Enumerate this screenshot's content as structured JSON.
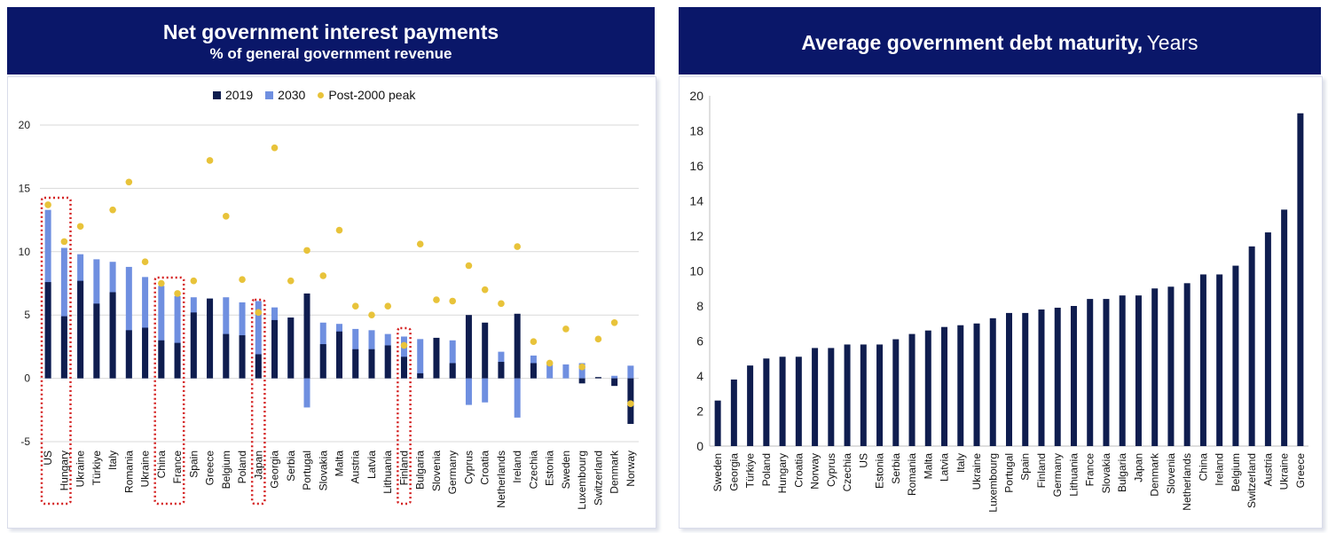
{
  "colors": {
    "header_bg": "#0a1769",
    "bar_2019": "#0f1d4f",
    "bar_2030": "#6f8fe0",
    "peak_dot": "#e8c33a",
    "maturity_bar": "#0f1d4f",
    "highlight_box": "#d42020"
  },
  "left": {
    "title": "Net government interest payments",
    "subtitle": "% of general government revenue",
    "legend": [
      {
        "label": "2019",
        "icon": "square",
        "color": "#0f1d4f"
      },
      {
        "label": "2030",
        "icon": "square",
        "color": "#6f8fe0"
      },
      {
        "label": "Post-2000 peak",
        "icon": "dot",
        "color": "#e8c33a"
      }
    ]
  },
  "right": {
    "title": "Average government debt maturity,",
    "unit": "Years"
  },
  "chart_data": [
    {
      "type": "bar",
      "title": "Net government interest payments",
      "subtitle": "% of general government revenue",
      "ylim": [
        -5,
        20
      ],
      "yticks": [
        -5,
        0,
        5,
        10,
        15,
        20
      ],
      "grid": true,
      "legend_position": "top",
      "categories": [
        "US",
        "Hungary",
        "Ukraine",
        "Türkiye",
        "Italy",
        "Romania",
        "Ukraine",
        "China",
        "France",
        "Spain",
        "Greece",
        "Belgium",
        "Poland",
        "Japan",
        "Georgia",
        "Serbia",
        "Portugal",
        "Slovakia",
        "Malta",
        "Austria",
        "Latvia",
        "Lithuania",
        "Finland",
        "Bulgaria",
        "Slovenia",
        "Germany",
        "Cyprus",
        "Croatia",
        "Netherlands",
        "Ireland",
        "Czechia",
        "Estonia",
        "Sweden",
        "Luxembourg",
        "Switzerland",
        "Denmark",
        "Norway"
      ],
      "series": [
        {
          "name": "2019",
          "type": "bar",
          "values": [
            7.6,
            4.9,
            7.7,
            5.9,
            6.8,
            3.8,
            4.0,
            3.0,
            2.8,
            5.2,
            6.3,
            3.5,
            3.4,
            1.9,
            4.6,
            4.8,
            6.7,
            2.7,
            3.7,
            2.3,
            2.3,
            2.6,
            1.7,
            0.4,
            3.2,
            1.2,
            5.0,
            4.4,
            1.3,
            5.1,
            1.2,
            0.0,
            0.0,
            -0.4,
            0.1,
            -0.6,
            -3.6
          ]
        },
        {
          "name": "2030",
          "type": "bar",
          "values": [
            13.3,
            10.3,
            9.8,
            9.4,
            9.2,
            8.8,
            8.0,
            7.3,
            6.5,
            6.4,
            6.3,
            6.4,
            6.0,
            6.1,
            5.6,
            4.8,
            -2.3,
            4.4,
            4.3,
            3.9,
            3.8,
            3.5,
            3.3,
            3.1,
            0.0,
            3.0,
            -2.1,
            -1.9,
            2.1,
            -3.1,
            1.8,
            1.1,
            1.1,
            1.2,
            0.0,
            0.2,
            1.0
          ]
        },
        {
          "name": "Post-2000 peak",
          "type": "scatter",
          "values": [
            13.7,
            10.8,
            12.0,
            null,
            13.3,
            15.5,
            9.2,
            7.5,
            6.7,
            7.7,
            17.2,
            12.8,
            7.8,
            5.2,
            18.2,
            7.7,
            10.1,
            8.1,
            11.7,
            5.7,
            5.0,
            5.7,
            2.6,
            10.6,
            6.2,
            6.1,
            8.9,
            7.0,
            5.9,
            10.4,
            2.9,
            1.2,
            3.9,
            0.9,
            3.1,
            4.4,
            -2.0
          ]
        }
      ],
      "highlighted": [
        "US",
        "Hungary",
        "China",
        "France",
        "Japan",
        "Finland"
      ]
    },
    {
      "type": "bar",
      "title": "Average government debt maturity, Years",
      "ylim": [
        0,
        20
      ],
      "yticks": [
        0,
        2,
        4,
        6,
        8,
        10,
        12,
        14,
        16,
        18,
        20
      ],
      "grid": false,
      "categories": [
        "Sweden",
        "Georgia",
        "Türkiye",
        "Poland",
        "Hungary",
        "Croatia",
        "Norway",
        "Cyprus",
        "Czechia",
        "US",
        "Estonia",
        "Serbia",
        "Romania",
        "Malta",
        "Latvia",
        "Italy",
        "Ukraine",
        "Luxembourg",
        "Portugal",
        "Spain",
        "Finland",
        "Germany",
        "Lithuania",
        "France",
        "Slovakia",
        "Bulgaria",
        "Japan",
        "Denmark",
        "Slovenia",
        "Netherlands",
        "China",
        "Ireland",
        "Belgium",
        "Switzerland",
        "Austria",
        "Ukraine",
        "Greece"
      ],
      "values": [
        2.6,
        3.8,
        4.6,
        5.0,
        5.1,
        5.1,
        5.6,
        5.6,
        5.8,
        5.8,
        5.8,
        6.1,
        6.4,
        6.6,
        6.8,
        6.9,
        7.0,
        7.3,
        7.6,
        7.6,
        7.8,
        7.9,
        8.0,
        8.4,
        8.4,
        8.6,
        8.6,
        9.0,
        9.1,
        9.3,
        9.8,
        9.8,
        10.3,
        11.4,
        12.2,
        13.5,
        19.0
      ]
    }
  ]
}
